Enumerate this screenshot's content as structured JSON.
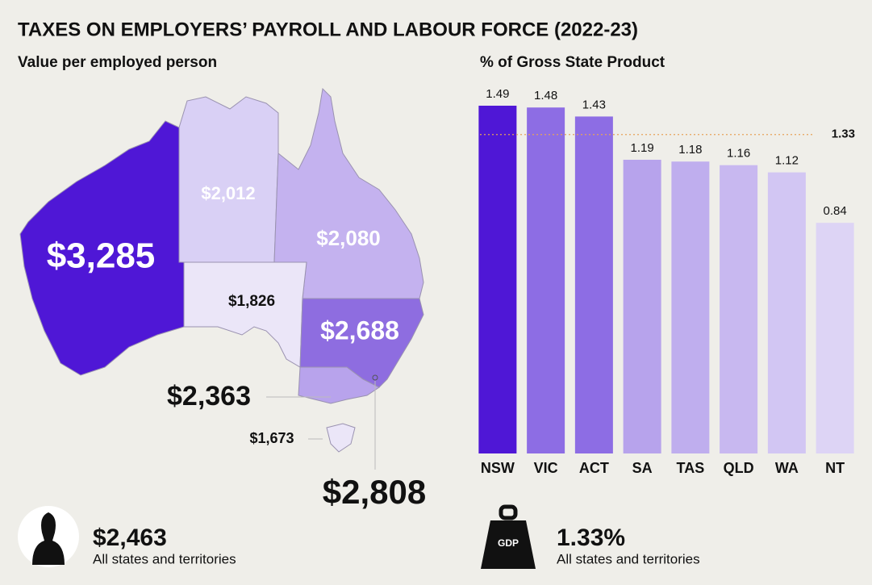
{
  "title": "TAXES ON EMPLOYERS’ PAYROLL AND LABOUR FORCE (2022-23)",
  "map": {
    "title": "Value per employed person",
    "labels": [
      "$3,285",
      "$2,012",
      "$2,080",
      "$1,826",
      "$2,688",
      "$2,363",
      "$1,673",
      "$2,808"
    ]
  },
  "chart_data": {
    "type": "bar",
    "title": "% of Gross State Product",
    "categories": [
      "NSW",
      "VIC",
      "ACT",
      "SA",
      "TAS",
      "QLD",
      "WA",
      "NT"
    ],
    "values": [
      1.49,
      1.48,
      1.43,
      1.19,
      1.18,
      1.16,
      1.12,
      0.84
    ],
    "colors": [
      "#4f17d6",
      "#8d6de4",
      "#8d6de4",
      "#b7a3ec",
      "#bfaeee",
      "#c8b8f0",
      "#d2c6f3",
      "#ddd4f5"
    ],
    "ylim": [
      -0.44,
      1.55
    ],
    "reference_line": 1.33,
    "reference_color": "#e8a25a"
  },
  "summary": [
    {
      "value": "$2,463",
      "note": "All states and territories"
    },
    {
      "icon": "GDP",
      "value": "1.33%",
      "note": "All states and territories"
    }
  ]
}
